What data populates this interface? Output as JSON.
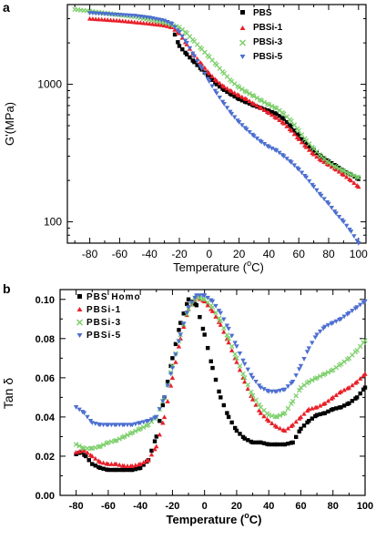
{
  "chart_data": [
    {
      "panel_label": "a",
      "type": "scatter",
      "xlabel_main": "Temperature (",
      "xlabel_deg": "o",
      "xlabel_end": "C)",
      "ylabel": "G'(MPa)",
      "x_ticks": [
        "-80",
        "-60",
        "-40",
        "-20",
        "0",
        "20",
        "40",
        "60",
        "80",
        "100"
      ],
      "y_ticks": [
        "100",
        "1000"
      ],
      "xlim": [
        -95,
        105
      ],
      "ylim": [
        70,
        3800
      ],
      "y_scale": "log",
      "legend_position": "top-right",
      "series": [
        {
          "name": "PBS",
          "marker": "square",
          "color": "#000000",
          "x": [
            -23,
            -20,
            -15,
            -10,
            -5,
            0,
            5,
            10,
            15,
            20,
            25,
            30,
            35,
            40,
            45,
            50,
            55,
            60,
            65,
            70,
            75,
            80,
            85,
            90,
            95,
            100
          ],
          "y": [
            2300,
            1900,
            1650,
            1450,
            1280,
            1130,
            1000,
            910,
            840,
            780,
            740,
            700,
            670,
            640,
            610,
            560,
            490,
            420,
            370,
            330,
            300,
            275,
            255,
            235,
            220,
            205
          ]
        },
        {
          "name": "PBSi-1",
          "marker": "triangle-up",
          "color": "#e8202a",
          "x": [
            -80,
            -70,
            -60,
            -50,
            -40,
            -30,
            -25,
            -20,
            -15,
            -10,
            -5,
            0,
            5,
            10,
            15,
            20,
            25,
            30,
            35,
            40,
            45,
            50,
            55,
            60,
            65,
            70,
            75,
            80,
            85,
            90,
            95,
            100
          ],
          "y": [
            3000,
            2950,
            2900,
            2830,
            2760,
            2680,
            2600,
            2350,
            1950,
            1620,
            1400,
            1200,
            1060,
            960,
            890,
            830,
            780,
            720,
            670,
            620,
            570,
            520,
            460,
            400,
            350,
            310,
            280,
            260,
            240,
            220,
            200,
            180
          ]
        },
        {
          "name": "PBSi-3",
          "marker": "x",
          "color": "#7ccf6a",
          "x": [
            -90,
            -80,
            -70,
            -60,
            -50,
            -40,
            -30,
            -20,
            -15,
            -10,
            -5,
            0,
            5,
            10,
            15,
            20,
            25,
            30,
            35,
            40,
            45,
            50,
            55,
            60,
            65,
            70,
            75,
            80,
            85,
            90,
            95,
            100
          ],
          "y": [
            3500,
            3400,
            3300,
            3200,
            3100,
            2950,
            2800,
            2600,
            2350,
            2050,
            1800,
            1580,
            1380,
            1200,
            1050,
            950,
            880,
            820,
            760,
            710,
            670,
            610,
            540,
            460,
            390,
            340,
            300,
            270,
            250,
            235,
            220,
            210
          ]
        },
        {
          "name": "PBSi-5",
          "marker": "triangle-down",
          "color": "#4d6fd0",
          "x": [
            -80,
            -70,
            -60,
            -50,
            -40,
            -30,
            -25,
            -20,
            -15,
            -10,
            -5,
            0,
            5,
            10,
            15,
            20,
            25,
            30,
            35,
            40,
            45,
            50,
            55,
            60,
            65,
            70,
            75,
            80,
            85,
            90,
            95,
            100
          ],
          "y": [
            3300,
            3250,
            3200,
            3150,
            3050,
            2900,
            2750,
            2400,
            2000,
            1600,
            1300,
            1050,
            860,
            720,
            610,
            530,
            470,
            420,
            380,
            350,
            330,
            300,
            270,
            240,
            210,
            180,
            155,
            135,
            115,
            100,
            85,
            70
          ]
        }
      ]
    },
    {
      "panel_label": "b",
      "type": "scatter",
      "xlabel_main": "Temperature (",
      "xlabel_deg": "o",
      "xlabel_end": "C)",
      "ylabel": "Tan δ",
      "x_ticks": [
        "-80",
        "-60",
        "-40",
        "-20",
        "0",
        "20",
        "40",
        "60",
        "80",
        "100"
      ],
      "y_ticks": [
        "0.00",
        "0.02",
        "0.04",
        "0.06",
        "0.08",
        "0.10"
      ],
      "xlim": [
        -90,
        100
      ],
      "ylim": [
        0,
        0.105
      ],
      "legend_position": "top-left",
      "series": [
        {
          "name": "PBS Homo",
          "marker": "square",
          "color": "#000000",
          "x": [
            -80,
            -77,
            -74,
            -70,
            -65,
            -60,
            -55,
            -50,
            -45,
            -40,
            -35,
            -30,
            -25,
            -20,
            -15,
            -10,
            -5,
            0,
            5,
            10,
            15,
            20,
            25,
            30,
            35,
            40,
            45,
            50,
            55,
            60,
            65,
            70,
            75,
            80,
            85,
            90,
            95,
            100
          ],
          "y": [
            0.021,
            0.022,
            0.02,
            0.016,
            0.014,
            0.013,
            0.013,
            0.013,
            0.013,
            0.014,
            0.018,
            0.03,
            0.05,
            0.07,
            0.088,
            0.1,
            0.097,
            0.082,
            0.065,
            0.05,
            0.04,
            0.033,
            0.029,
            0.027,
            0.027,
            0.026,
            0.026,
            0.026,
            0.027,
            0.034,
            0.038,
            0.041,
            0.042,
            0.044,
            0.045,
            0.047,
            0.05,
            0.055
          ]
        },
        {
          "name": "PBSi-1",
          "marker": "triangle-up",
          "color": "#e8202a",
          "x": [
            -80,
            -75,
            -70,
            -65,
            -60,
            -55,
            -50,
            -45,
            -40,
            -35,
            -30,
            -25,
            -20,
            -15,
            -10,
            -5,
            0,
            5,
            10,
            15,
            20,
            25,
            30,
            35,
            40,
            45,
            50,
            55,
            60,
            65,
            70,
            75,
            80,
            85,
            90,
            95,
            100
          ],
          "y": [
            0.022,
            0.023,
            0.02,
            0.017,
            0.016,
            0.016,
            0.015,
            0.015,
            0.016,
            0.018,
            0.025,
            0.04,
            0.06,
            0.08,
            0.095,
            0.101,
            0.099,
            0.094,
            0.087,
            0.078,
            0.068,
            0.058,
            0.049,
            0.042,
            0.038,
            0.035,
            0.033,
            0.036,
            0.04,
            0.044,
            0.045,
            0.047,
            0.05,
            0.053,
            0.055,
            0.058,
            0.062
          ]
        },
        {
          "name": "PBSi-3",
          "marker": "x",
          "color": "#7ccf6a",
          "x": [
            -80,
            -75,
            -70,
            -65,
            -60,
            -55,
            -50,
            -45,
            -40,
            -35,
            -30,
            -25,
            -20,
            -15,
            -10,
            -5,
            0,
            5,
            10,
            15,
            20,
            25,
            30,
            35,
            40,
            45,
            50,
            55,
            60,
            65,
            70,
            75,
            80,
            85,
            90,
            95,
            100
          ],
          "y": [
            0.026,
            0.024,
            0.024,
            0.025,
            0.027,
            0.028,
            0.03,
            0.032,
            0.034,
            0.036,
            0.04,
            0.05,
            0.066,
            0.082,
            0.095,
            0.101,
            0.1,
            0.096,
            0.089,
            0.08,
            0.07,
            0.06,
            0.051,
            0.045,
            0.041,
            0.04,
            0.042,
            0.048,
            0.055,
            0.058,
            0.06,
            0.062,
            0.064,
            0.067,
            0.07,
            0.074,
            0.079
          ]
        },
        {
          "name": "PBSi-5",
          "marker": "triangle-down",
          "color": "#4d6fd0",
          "x": [
            -80,
            -75,
            -70,
            -65,
            -60,
            -55,
            -50,
            -45,
            -40,
            -35,
            -30,
            -25,
            -20,
            -15,
            -10,
            -5,
            0,
            5,
            10,
            15,
            20,
            25,
            30,
            35,
            40,
            45,
            50,
            55,
            60,
            65,
            70,
            75,
            80,
            85,
            90,
            95,
            100
          ],
          "y": [
            0.045,
            0.042,
            0.037,
            0.036,
            0.036,
            0.036,
            0.036,
            0.036,
            0.037,
            0.038,
            0.04,
            0.05,
            0.065,
            0.082,
            0.096,
            0.102,
            0.102,
            0.099,
            0.093,
            0.085,
            0.076,
            0.067,
            0.06,
            0.055,
            0.053,
            0.053,
            0.054,
            0.058,
            0.066,
            0.075,
            0.082,
            0.086,
            0.088,
            0.09,
            0.093,
            0.096,
            0.099
          ]
        }
      ]
    }
  ]
}
